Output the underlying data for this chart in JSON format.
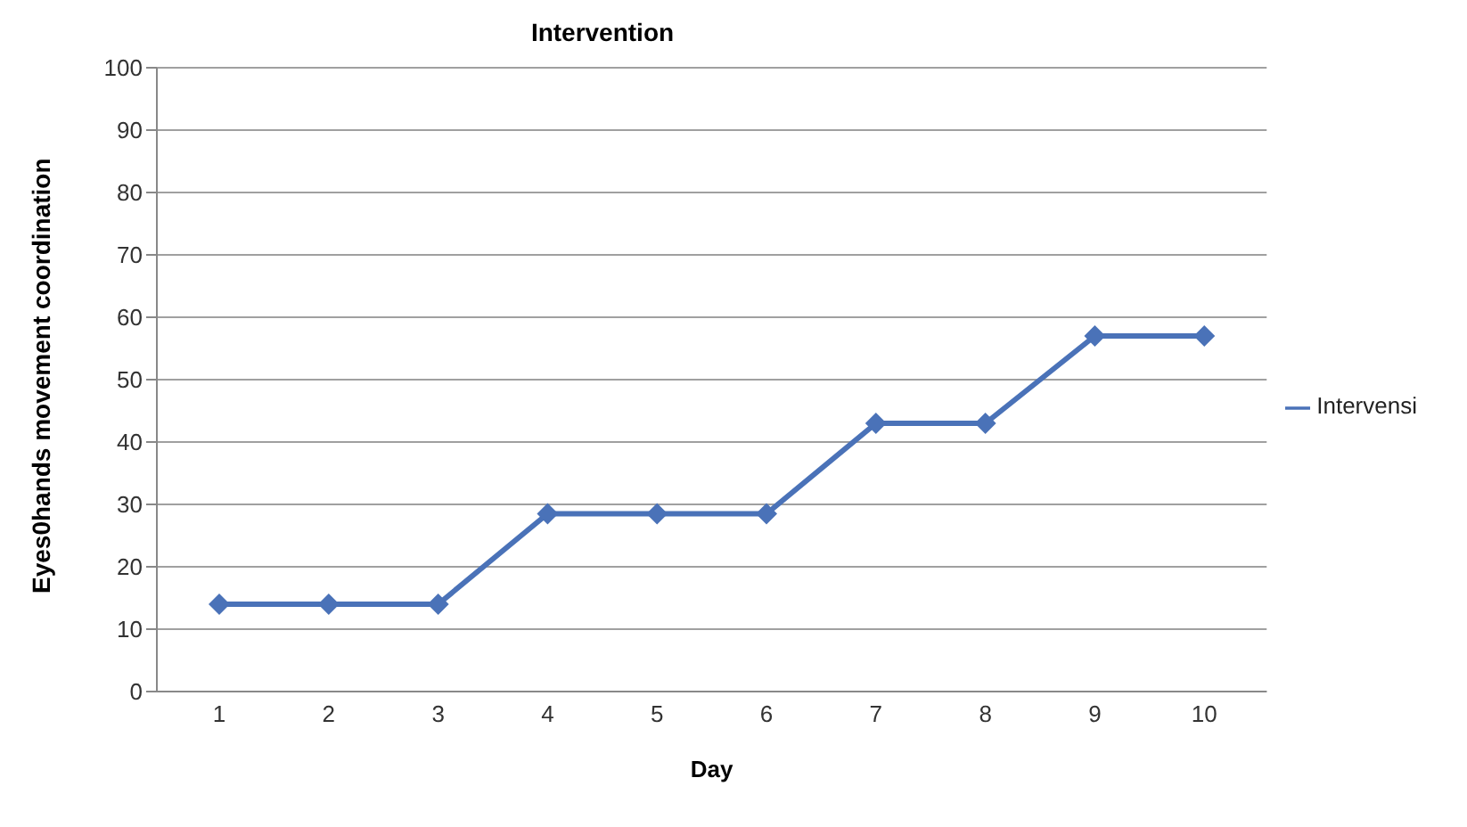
{
  "chart_data": {
    "type": "line",
    "title": "Intervention",
    "xlabel": "Day",
    "ylabel": "Eyes0hands movement coordination",
    "categories": [
      "1",
      "2",
      "3",
      "4",
      "5",
      "6",
      "7",
      "8",
      "9",
      "10"
    ],
    "series": [
      {
        "name": "Intervensi",
        "color": "#4a72b8",
        "values": [
          14,
          14,
          14,
          28.5,
          28.5,
          28.5,
          43,
          43,
          57,
          57
        ]
      }
    ],
    "ylim": [
      0,
      100
    ],
    "yticks": [
      0,
      10,
      20,
      30,
      40,
      50,
      60,
      70,
      80,
      90,
      100
    ],
    "grid": "y",
    "legend": "right",
    "marker": "diamond"
  }
}
